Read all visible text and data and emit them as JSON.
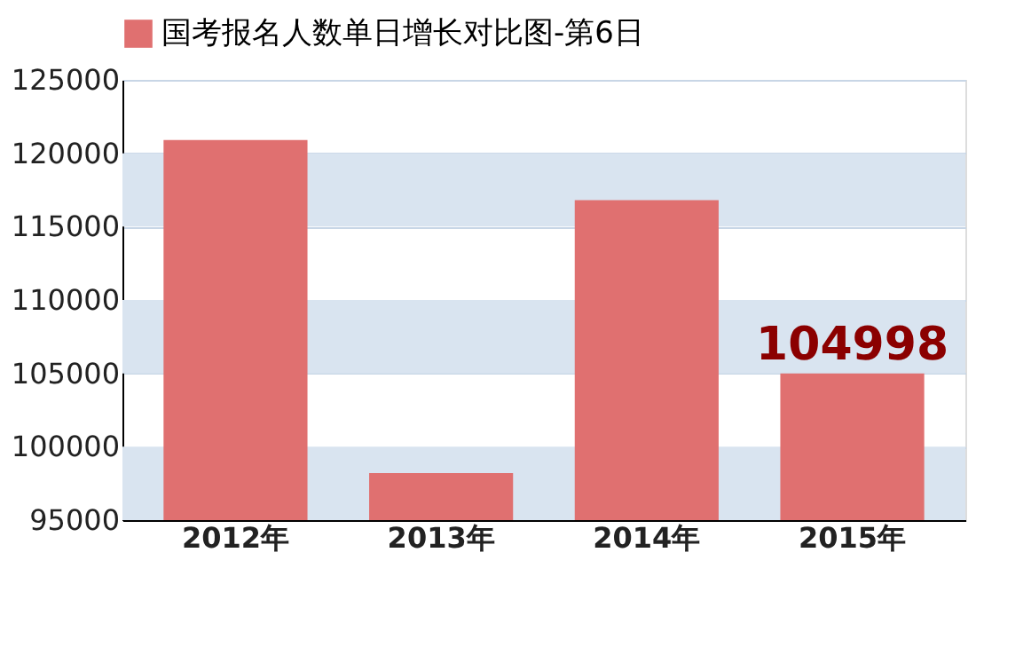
{
  "chart_data": {
    "type": "bar",
    "categories": [
      "2012年",
      "2013年",
      "2014年",
      "2015年"
    ],
    "series": [
      {
        "name": "国考报名人数单日增长对比图-第6日",
        "color": "#e07070",
        "values": [
          120900,
          98200,
          116800,
          104998
        ],
        "value_labels": [
          null,
          null,
          null,
          "104998"
        ]
      }
    ],
    "ylim": [
      95000,
      125000
    ],
    "yticks": [
      95000,
      100000,
      105000,
      110000,
      115000,
      120000,
      125000
    ],
    "grid": "y",
    "legend": "top"
  }
}
